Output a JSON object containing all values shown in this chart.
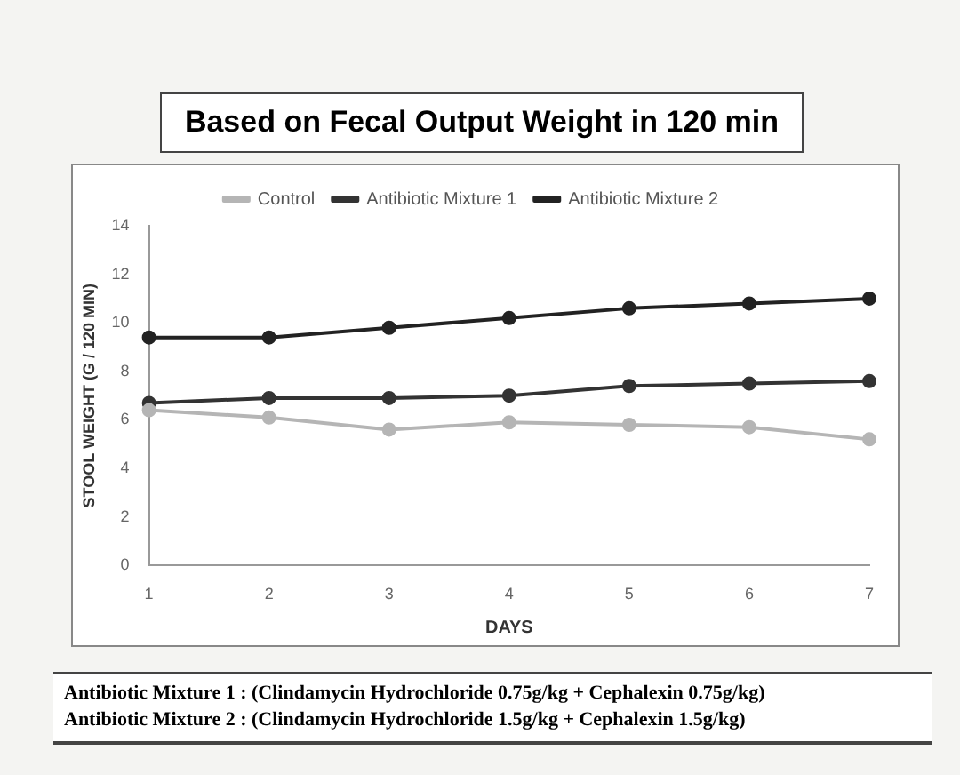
{
  "chart_data": {
    "type": "line",
    "title": "Based on Fecal Output Weight in 120 min",
    "xlabel": "DAYS",
    "ylabel": "STOOL WEIGHT (G / 120 MIN)",
    "categories": [
      "1",
      "2",
      "3",
      "4",
      "5",
      "6",
      "7"
    ],
    "series": [
      {
        "name": "Control",
        "color": "#b5b5b5",
        "values": [
          6.4,
          6.1,
          5.6,
          5.9,
          5.8,
          5.7,
          5.2
        ]
      },
      {
        "name": "Antibiotic Mixture 1",
        "color": "#333333",
        "values": [
          6.7,
          6.9,
          6.9,
          7.0,
          7.4,
          7.5,
          7.6
        ]
      },
      {
        "name": "Antibiotic Mixture 2",
        "color": "#222222",
        "values": [
          9.4,
          9.4,
          9.8,
          10.2,
          10.6,
          10.8,
          11.0
        ]
      }
    ],
    "ylim": [
      0,
      14
    ],
    "yticks": [
      0,
      2,
      4,
      6,
      8,
      10,
      12,
      14
    ],
    "grid": false,
    "legend": "top",
    "marker": "circle",
    "line_style": "solid",
    "annotations": [
      "Antibiotic Mixture 1 : (Clindamycin Hydrochloride 0.75g/kg + Cephalexin 0.75g/kg)",
      "Antibiotic Mixture 2 : (Clindamycin Hydrochloride 1.5g/kg + Cephalexin 1.5g/kg)"
    ]
  }
}
